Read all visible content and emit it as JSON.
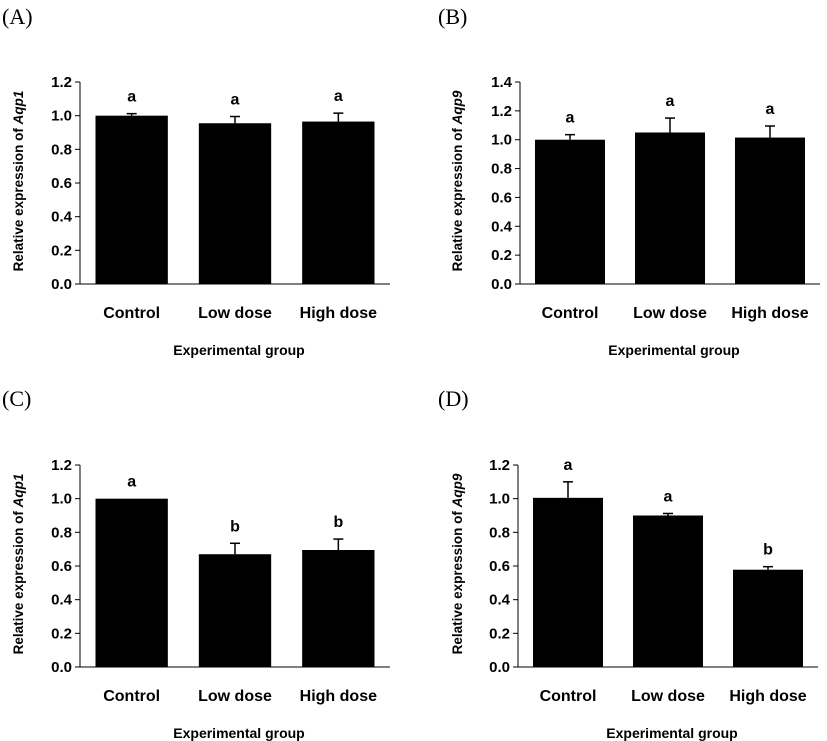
{
  "chart_data": [
    {
      "panel_label": "(A)",
      "type": "bar",
      "categories": [
        "Control",
        "Low dose",
        "High dose"
      ],
      "values": [
        1.0,
        0.955,
        0.965
      ],
      "errors": [
        0.012,
        0.04,
        0.05
      ],
      "significance": [
        "a",
        "a",
        "a"
      ],
      "xlabel": "Experimental group",
      "ylabel_prefix": "Relative expression of ",
      "ylabel_gene": "Aqp1",
      "ylim": [
        0,
        1.2
      ],
      "yticks": [
        "0.0",
        "0.2",
        "0.4",
        "0.6",
        "0.8",
        "1.0",
        "1.2"
      ],
      "bar_color": "#000000"
    },
    {
      "panel_label": "(B)",
      "type": "bar",
      "categories": [
        "Control",
        "Low dose",
        "High dose"
      ],
      "values": [
        1.0,
        1.05,
        1.015
      ],
      "errors": [
        0.035,
        0.1,
        0.08
      ],
      "significance": [
        "a",
        "a",
        "a"
      ],
      "xlabel": "Experimental group",
      "ylabel_prefix": "Relative expression of ",
      "ylabel_gene": "Aqp9",
      "ylim": [
        0,
        1.4
      ],
      "yticks": [
        "0.0",
        "0.2",
        "0.4",
        "0.6",
        "0.8",
        "1.0",
        "1.2",
        "1.4"
      ],
      "bar_color": "#000000"
    },
    {
      "panel_label": "(C)",
      "type": "bar",
      "categories": [
        "Control",
        "Low dose",
        "High dose"
      ],
      "values": [
        1.0,
        0.67,
        0.695
      ],
      "errors": [
        0.0,
        0.065,
        0.065
      ],
      "significance": [
        "a",
        "b",
        "b"
      ],
      "xlabel": "Experimental group",
      "ylabel_prefix": "Relative expression of ",
      "ylabel_gene": "Aqp1",
      "ylim": [
        0,
        1.2
      ],
      "yticks": [
        "0.0",
        "0.2",
        "0.4",
        "0.6",
        "0.8",
        "1.0",
        "1.2"
      ],
      "bar_color": "#000000"
    },
    {
      "panel_label": "(D)",
      "type": "bar",
      "categories": [
        "Control",
        "Low dose",
        "High dose"
      ],
      "values": [
        1.005,
        0.9,
        0.578
      ],
      "errors": [
        0.095,
        0.012,
        0.018
      ],
      "significance": [
        "a",
        "a",
        "b"
      ],
      "xlabel": "Experimental group",
      "ylabel_prefix": "Relative expression of ",
      "ylabel_gene": "Aqp9",
      "ylim": [
        0,
        1.2
      ],
      "yticks": [
        "0.0",
        "0.2",
        "0.4",
        "0.6",
        "0.8",
        "1.0",
        "1.2"
      ],
      "bar_color": "#000000"
    }
  ]
}
